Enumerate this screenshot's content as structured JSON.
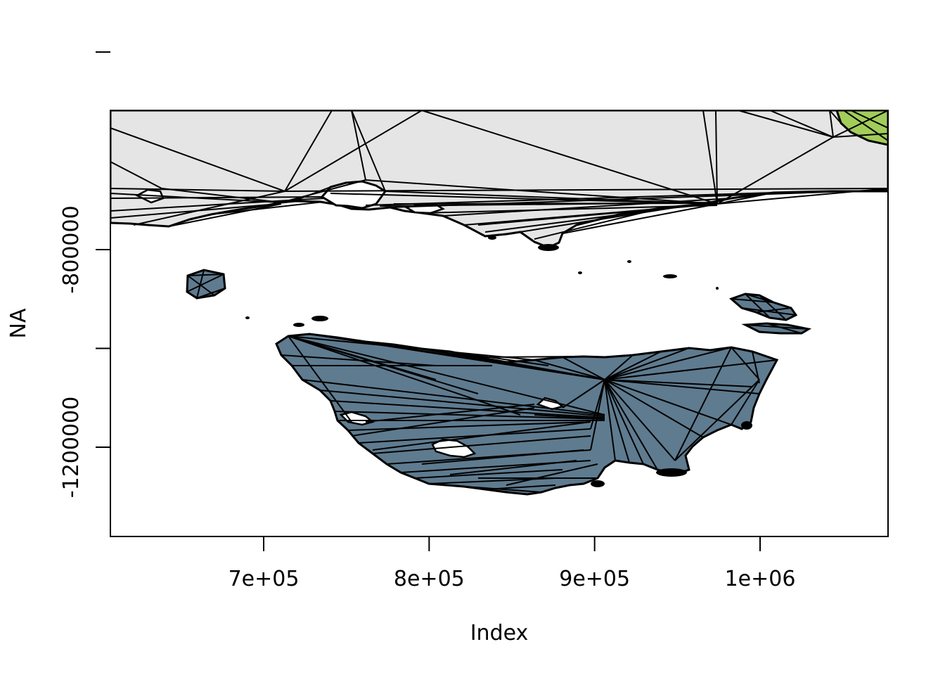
{
  "plot": {
    "xlabel": "Index",
    "ylabel": "NA",
    "x_ticks": [
      {
        "value": 700000,
        "label": "7e+05"
      },
      {
        "value": 800000,
        "label": "8e+05"
      },
      {
        "value": 900000,
        "label": "9e+05"
      },
      {
        "value": 1000000,
        "label": "1e+06"
      }
    ],
    "y_ticks": [
      {
        "value": -400000,
        "label": ""
      },
      {
        "value": -800000,
        "label": "-800000"
      },
      {
        "value": -1000000,
        "label": ""
      },
      {
        "value": -1200000,
        "label": "-1200000"
      }
    ]
  },
  "colors": {
    "mainland": "#e5e5e5",
    "tasmania": "#5f7b8f",
    "north_east_region": "#a2cd5a",
    "outline": "#000000",
    "background": "#ffffff"
  }
}
